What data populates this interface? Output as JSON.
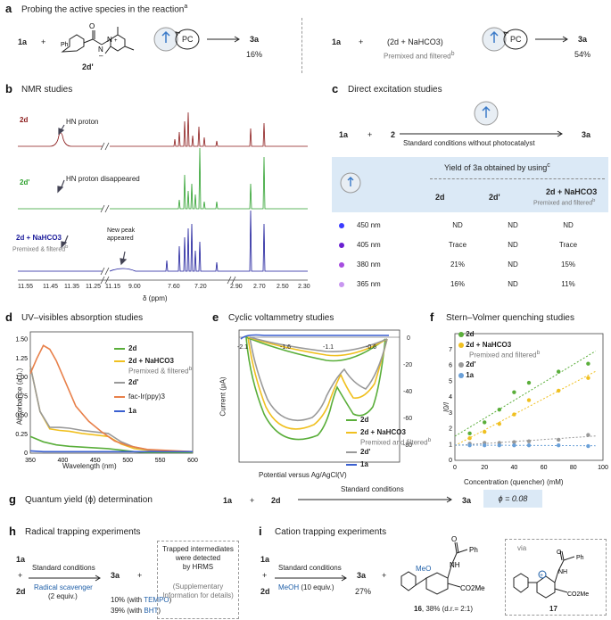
{
  "panel_a": {
    "label": "a",
    "title": "Probing the active species in the reaction",
    "title_sup": "a",
    "left": {
      "r1": "1a",
      "plus": "+",
      "r2": "2d'",
      "pc": "PC",
      "product": "3a",
      "yield": "16%"
    },
    "right": {
      "r1": "1a",
      "plus": "+",
      "r2": "(2d + NaHCO3)",
      "note": "Premixed and filtered",
      "note_sup": "b",
      "pc": "PC",
      "product": "3a",
      "yield": "54%"
    }
  },
  "panel_b": {
    "label": "b",
    "title": "NMR studies",
    "trace_labels": [
      "2d",
      "2d'",
      "2d + NaHCO3"
    ],
    "trace_sub": "Premixed & filtered",
    "trace_sub_sup": "b",
    "annotations": [
      "HN proton",
      "HN proton disappeared",
      "New peak appeared"
    ],
    "x_ticks": [
      "11.55",
      "11.45",
      "11.35",
      "11.25",
      "11.15",
      "9.00",
      "7.60",
      "7.20",
      "2.90",
      "2.70",
      "2.50",
      "2.30"
    ],
    "x_label": "δ (ppm)",
    "colors": {
      "2d": "#8b1a1a",
      "2d'": "#2ca02c",
      "2d+NaHCO3": "#1a1a9a"
    }
  },
  "panel_c": {
    "label": "c",
    "title": "Direct excitation studies",
    "scheme": {
      "r1": "1a",
      "plus": "+",
      "r2": "2",
      "product": "3a",
      "condition": "Standard conditions without photocatalyst"
    },
    "table": {
      "header": "Yield of 3a obtained by using",
      "header_sup": "c",
      "cols": [
        "2d",
        "2d'",
        "2d + NaHCO3"
      ],
      "col3_sub": "Premixed and filtered",
      "col3_sup": "b",
      "rows": [
        {
          "wl": "450 nm",
          "color": "#3b3bff",
          "v": [
            "ND",
            "ND",
            "ND"
          ]
        },
        {
          "wl": "405 nm",
          "color": "#6a1fd1",
          "v": [
            "Trace",
            "ND",
            "Trace"
          ]
        },
        {
          "wl": "380 nm",
          "color": "#a64de0",
          "v": [
            "21%",
            "ND",
            "15%"
          ]
        },
        {
          "wl": "365 nm",
          "color": "#c896f0",
          "v": [
            "16%",
            "ND",
            "11%"
          ]
        }
      ]
    }
  },
  "panel_d": {
    "label": "d",
    "title": "UV–visibles absorption studies",
    "chart_data": {
      "type": "line",
      "xlabel": "Wavelength (nm)",
      "ylabel": "Absorbance (a.u.)",
      "xlim": [
        350,
        600
      ],
      "ylim": [
        0,
        1.6
      ],
      "x_ticks": [
        350,
        400,
        450,
        500,
        550,
        600
      ],
      "y_ticks": [
        0,
        0.25,
        0.5,
        0.75,
        1.0,
        1.25,
        1.5
      ],
      "y_tick_labels": [
        "0",
        "0.25",
        "0.50",
        "0.75",
        "1.00",
        "1.25",
        "1.50"
      ],
      "series": [
        {
          "name": "2d",
          "color": "#5aae3a",
          "x": [
            350,
            370,
            390,
            410,
            430,
            450,
            470,
            490,
            510,
            530,
            560,
            600
          ],
          "y": [
            0.22,
            0.15,
            0.11,
            0.09,
            0.08,
            0.07,
            0.06,
            0.04,
            0.02,
            0.01,
            0.01,
            0.01
          ]
        },
        {
          "name": "2d + NaHCO3",
          "color": "#f0c020",
          "x": [
            350,
            365,
            380,
            395,
            410,
            430,
            450,
            470,
            490,
            510,
            540,
            600
          ],
          "y": [
            1.15,
            0.55,
            0.32,
            0.3,
            0.29,
            0.26,
            0.24,
            0.22,
            0.12,
            0.06,
            0.03,
            0.02
          ]
        },
        {
          "name": "2d'",
          "color": "#999999",
          "x": [
            350,
            365,
            380,
            395,
            410,
            430,
            450,
            470,
            490,
            510,
            540,
            600
          ],
          "y": [
            1.15,
            0.55,
            0.34,
            0.34,
            0.33,
            0.3,
            0.28,
            0.26,
            0.15,
            0.08,
            0.03,
            0.02
          ]
        },
        {
          "name": "fac-Ir(ppy)3",
          "color": "#e8804a",
          "x": [
            350,
            360,
            370,
            380,
            390,
            400,
            410,
            420,
            440,
            460,
            480,
            500,
            530,
            600
          ],
          "y": [
            1.05,
            1.25,
            1.42,
            1.37,
            1.22,
            1.02,
            0.82,
            0.62,
            0.42,
            0.28,
            0.16,
            0.1,
            0.05,
            0.02
          ]
        },
        {
          "name": "1a",
          "color": "#3a5fd0",
          "x": [
            350,
            370,
            400,
            450,
            500,
            550,
            600
          ],
          "y": [
            0.03,
            0.02,
            0.02,
            0.02,
            0.02,
            0.02,
            0.02
          ]
        }
      ],
      "legend": [
        "2d",
        "2d + NaHCO3",
        "2d'",
        "fac-Ir(ppy)3",
        "1a"
      ],
      "legend_sub": "Premixed & filtered",
      "legend_sub_sup": "b"
    }
  },
  "panel_e": {
    "label": "e",
    "title": "Cyclic voltammetry studies",
    "chart_data": {
      "type": "line",
      "xlabel": "Potential versus Ag/AgCl(V)",
      "ylabel": "Current (μA)",
      "x_ticks": [
        "-2.1",
        "-1.6",
        "-1.1",
        "-0.6"
      ],
      "y_ticks": [
        "0",
        "-20",
        "-40",
        "-60",
        "-80"
      ],
      "series": [
        {
          "name": "2d",
          "color": "#5aae3a"
        },
        {
          "name": "2d + NaHCO3",
          "color": "#f0c020"
        },
        {
          "name": "2d'",
          "color": "#999999"
        },
        {
          "name": "1a",
          "color": "#3a5fd0"
        }
      ],
      "legend": [
        "2d",
        "2d + NaHCO3",
        "2d'",
        "1a"
      ],
      "legend_sub": "Premixed and filtered",
      "legend_sub_sup": "b"
    }
  },
  "panel_f": {
    "label": "f",
    "title": "Stern–Volmer quenching studies",
    "chart_data": {
      "type": "scatter",
      "xlabel": "Concentration (quencher) (mM)",
      "ylabel": "I0/I",
      "xlim": [
        0,
        100
      ],
      "ylim": [
        0,
        8
      ],
      "x_ticks": [
        0,
        20,
        40,
        60,
        80,
        100
      ],
      "y_ticks": [
        0,
        1,
        2,
        3,
        4,
        5,
        6,
        7
      ],
      "series": [
        {
          "name": "2d",
          "color": "#5aae3a",
          "x": [
            10,
            20,
            30,
            40,
            50,
            70,
            90
          ],
          "y": [
            1.7,
            2.4,
            3.2,
            4.3,
            4.9,
            5.6,
            6.1
          ]
        },
        {
          "name": "2d + NaHCO3",
          "color": "#f0c020",
          "x": [
            10,
            20,
            30,
            40,
            50,
            70,
            90
          ],
          "y": [
            1.4,
            1.8,
            2.3,
            2.9,
            3.8,
            4.4,
            5.2
          ]
        },
        {
          "name": "2d'",
          "color": "#999999",
          "x": [
            10,
            20,
            30,
            40,
            50,
            70,
            90
          ],
          "y": [
            1.05,
            1.1,
            1.1,
            1.15,
            1.2,
            1.3,
            1.6
          ]
        },
        {
          "name": "1a",
          "color": "#6aa0d8",
          "x": [
            10,
            20,
            30,
            40,
            50,
            70,
            90
          ],
          "y": [
            0.95,
            0.95,
            0.95,
            0.95,
            0.95,
            0.95,
            0.9
          ]
        }
      ],
      "legend": [
        "2d",
        "2d + NaHCO3",
        "2d'",
        "1a"
      ],
      "legend_sub": "Premixed and filtered",
      "legend_sub_sup": "b"
    }
  },
  "panel_g": {
    "label": "g",
    "title": "Quantum yield (ϕ) determination",
    "r1": "1a",
    "plus": "+",
    "r2": "2d",
    "condition": "Standard conditions",
    "product": "3a",
    "result": "ϕ = 0.08"
  },
  "panel_h": {
    "label": "h",
    "title": "Radical trapping experiments",
    "r1": "1a",
    "plus": "+",
    "r2": "2d",
    "cond1": "Standard conditions",
    "cond2": "Radical scavenger",
    "cond3": "(2 equiv.)",
    "product": "3a",
    "plus2": "+",
    "yield1": "10% (with ",
    "tempo": "TEMPO",
    "yield1_end": ")",
    "yield2": "39% (with ",
    "bht": "BHT",
    "yield2_end": ")",
    "box": [
      "Trapped intermediates",
      "were detected",
      "by HRMS"
    ],
    "box_note": [
      "(Supplementary",
      "Information for details)"
    ]
  },
  "panel_i": {
    "label": "i",
    "title": "Cation trapping experiments",
    "r1": "1a",
    "plus": "+",
    "r2": "2d",
    "cond1": "Standard conditions",
    "cond2": "MeOH",
    "cond2_rest": "(10 equiv.)",
    "product": "3a",
    "yield": "27%",
    "plus2": "+",
    "cpd16": "16",
    "cpd16_yield": ", 38% (d.r.= 2:1)",
    "via": "via",
    "cpd17": "17",
    "struct": {
      "ph": "Ph",
      "nh": "NH",
      "co2me": "CO2Me",
      "meo": "MeO",
      "o": "O"
    }
  }
}
